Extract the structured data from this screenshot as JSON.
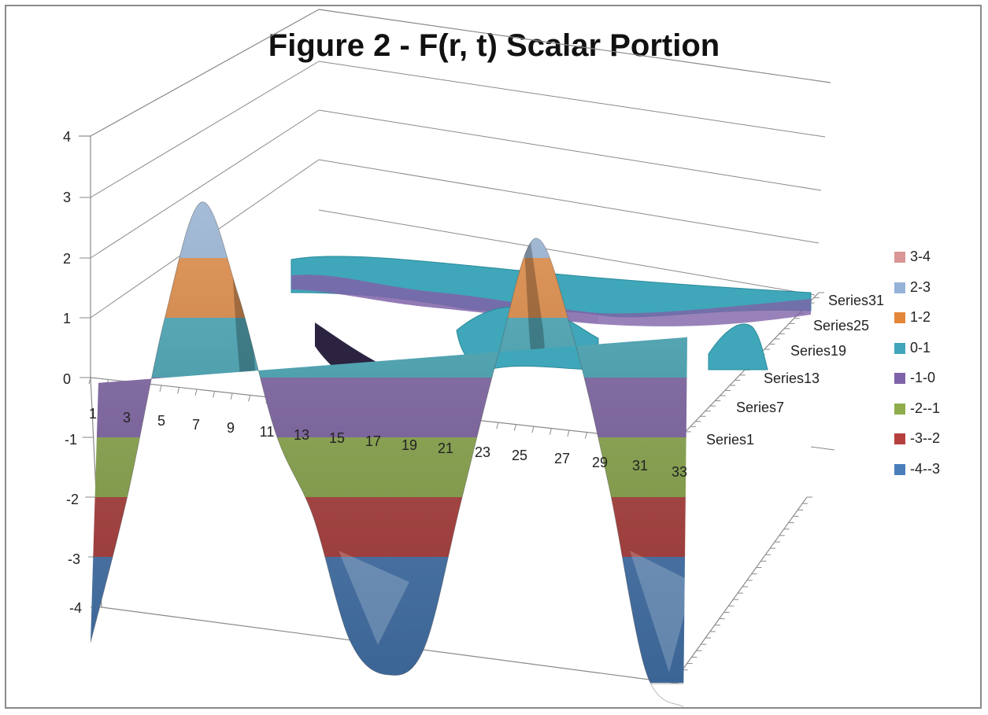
{
  "chart_data": {
    "type": "surface",
    "title": "Figure 2 - F(r, t) Scalar Portion",
    "z_axis": {
      "ticks": [
        "4",
        "3",
        "2",
        "1",
        "0",
        "-1",
        "-2",
        "-3",
        "-4"
      ],
      "range": [
        -4,
        4
      ]
    },
    "x_axis": {
      "ticks": [
        "1",
        "3",
        "5",
        "7",
        "9",
        "11",
        "13",
        "15",
        "17",
        "19",
        "21",
        "23",
        "25",
        "27",
        "29",
        "31",
        "33"
      ]
    },
    "y_axis": {
      "ticks": [
        "Series1",
        "Series7",
        "Series13",
        "Series19",
        "Series25",
        "Series31"
      ]
    },
    "front_profile": {
      "x": [
        1,
        3,
        5,
        7,
        9,
        11,
        13,
        15,
        17,
        19,
        21,
        23,
        25,
        27,
        29,
        31,
        33
      ],
      "z": [
        -4,
        -1.5,
        1.5,
        3.5,
        2,
        -0.2,
        -1.5,
        -3.5,
        -4,
        -3.5,
        -1,
        1.5,
        3.5,
        2,
        -0.5,
        -3.5,
        -4
      ]
    },
    "legend": [
      {
        "label": "3-4",
        "color": "#d99694"
      },
      {
        "label": "2-3",
        "color": "#95b3d7"
      },
      {
        "label": "1-2",
        "color": "#e3863a"
      },
      {
        "label": "0-1",
        "color": "#3fa7b9"
      },
      {
        "label": "-1-0",
        "color": "#7f63a8"
      },
      {
        "label": "-2--1",
        "color": "#8fae4b"
      },
      {
        "label": "-3--2",
        "color": "#b6403e"
      },
      {
        "label": "-4--3",
        "color": "#4a7ebb"
      }
    ]
  }
}
